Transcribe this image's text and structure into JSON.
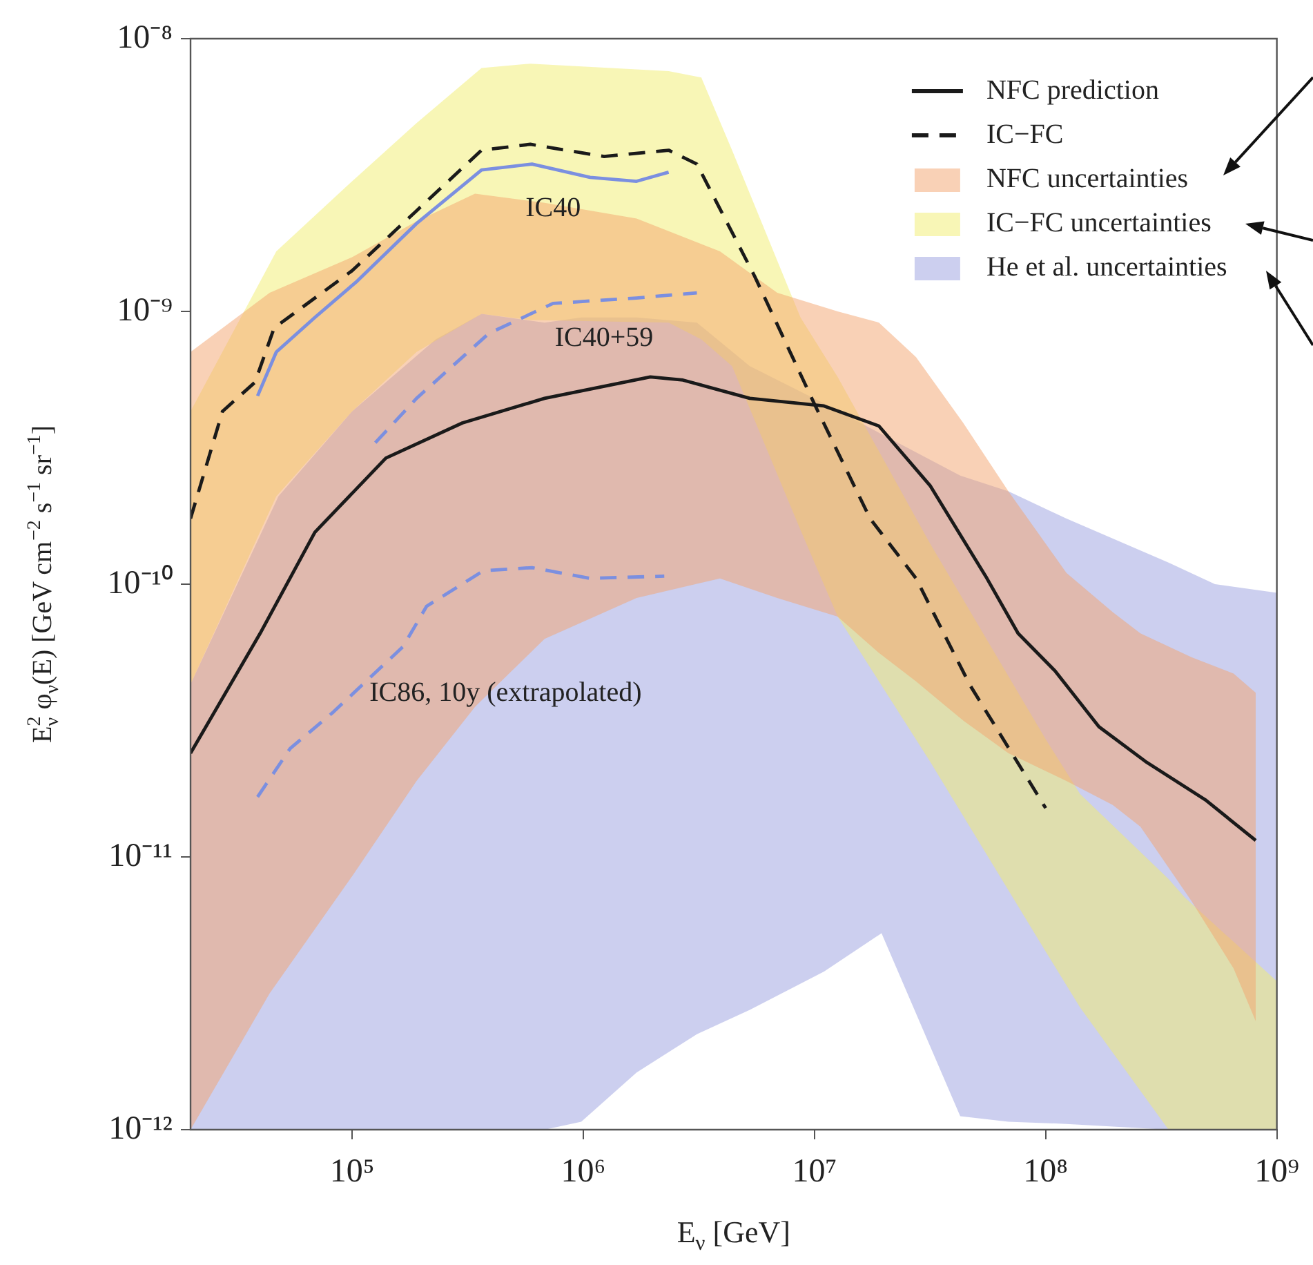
{
  "chart_data": {
    "type": "line",
    "log": "xy",
    "marker": "none",
    "legend": "top right",
    "xlabel": "E$_{ν}$ [GeV]",
    "ylabel": "E$_{ν}$$^{2}$ φ$_{ν}$(E) [GeV cm$^{−2}$ s$^{−1}$ sr$^{−1}$]",
    "xlim": [
      20000,
      1000000000
    ],
    "ylim": [
      1e-12,
      1e-08
    ],
    "xticks": [
      {
        "value": 100000,
        "label": "10⁵"
      },
      {
        "value": 1000000,
        "label": "10⁶"
      },
      {
        "value": 10000000,
        "label": "10⁷"
      },
      {
        "value": 100000000,
        "label": "10⁸"
      },
      {
        "value": 1000000000,
        "label": "10⁹"
      }
    ],
    "yticks": [
      {
        "value": 1e-12,
        "label": "10⁻¹²"
      },
      {
        "value": 1e-11,
        "label": "10⁻¹¹"
      },
      {
        "value": 1e-10,
        "label": "10⁻¹⁰"
      },
      {
        "value": 1e-09,
        "label": "10⁻⁹"
      },
      {
        "value": 1e-08,
        "label": "10⁻⁸"
      }
    ],
    "annotations": [
      {
        "text": "IC40",
        "x": 740000,
        "y": 3.3e-09
      },
      {
        "text": "IC40+59",
        "x": 1230000,
        "y": 1.1e-09
      },
      "IC86, 10y (extrapolated)"
    ],
    "series": [
      {
        "name": "NFC prediction",
        "color": "#1a1a1a",
        "line_style": "solid",
        "x": [
          20000,
          40000,
          69000,
          140000,
          300000,
          680000,
          1950000,
          2700000,
          5250000,
          11000000,
          19000000,
          31600000,
          55000000,
          76000000,
          110000000,
          170000000,
          270000000,
          490000000,
          810000000
        ],
        "values": [
          2.4e-11,
          6.6e-11,
          1.55e-10,
          2.9e-10,
          3.9e-10,
          4.8e-10,
          5.75e-10,
          5.6e-10,
          4.8e-10,
          4.5e-10,
          3.8e-10,
          2.3e-10,
          1.07e-10,
          6.6e-11,
          4.8e-11,
          3e-11,
          2.24e-11,
          1.62e-11,
          1.15e-11
        ]
      },
      {
        "name": "IC−FC",
        "color": "#1a1a1a",
        "line_style": "dashed",
        "x": [
          20000,
          27500,
          38000,
          46000,
          100000,
          190000,
          363000,
          590000,
          1230000,
          2340000,
          3100000,
          5500000,
          10000000,
          17400000,
          27500000,
          47000000,
          100000000
        ],
        "values": [
          1.74e-10,
          4.3e-10,
          5.5e-10,
          8.7e-10,
          1.41e-09,
          2.34e-09,
          3.9e-09,
          4.1e-09,
          3.7e-09,
          3.9e-09,
          3.47e-09,
          1.35e-09,
          4.57e-10,
          1.74e-10,
          1.05e-10,
          4.27e-11,
          1.51e-11
        ]
      },
      {
        "name": "NFC uncertainties",
        "type": "area",
        "color": "#f4a46e",
        "x": [
          20000,
          44000,
          100000,
          190000,
          340000,
          680000,
          1700000,
          3900000,
          6900000,
          12600000,
          19000000,
          27500000,
          44000000,
          69000000,
          123000000,
          195000000,
          257000000,
          427000000,
          650000000,
          810000000
        ],
        "values": [
          null,
          null,
          null,
          null,
          null,
          null,
          null,
          null,
          null,
          null,
          null,
          null,
          null,
          null,
          null,
          null,
          null,
          null,
          null,
          null
        ],
        "upper": [
          7.1e-10,
          1.17e-09,
          1.58e-09,
          2.14e-09,
          2.7e-09,
          2.5e-09,
          2.19e-09,
          1.66e-09,
          1.17e-09,
          1e-09,
          9.1e-10,
          6.8e-10,
          3.9e-10,
          2.19e-10,
          1.1e-10,
          7.9e-11,
          6.6e-11,
          5.4e-11,
          4.7e-11,
          4e-11
        ],
        "lower": [
          1e-12,
          3.16e-12,
          8.5e-12,
          1.9e-11,
          3.55e-11,
          6.3e-11,
          8.9e-11,
          1.05e-10,
          8.9e-11,
          7.6e-11,
          5.6e-11,
          4.4e-11,
          3.16e-11,
          2.4e-11,
          1.9e-11,
          1.55e-11,
          1.29e-11,
          6.9e-12,
          3.9e-12,
          2.5e-12
        ]
      },
      {
        "name": "IC−FC uncertainties",
        "type": "area",
        "color": "#f2ee6e",
        "x": [
          20000,
          47000,
          100000,
          190000,
          363000,
          590000,
          2340000,
          3240000,
          4400000,
          8700000,
          12600000,
          31600000,
          100000000,
          141000000,
          340000000,
          400000000,
          1000000000
        ],
        "values": [
          null,
          null,
          null,
          null,
          null,
          null,
          null,
          null,
          null,
          null,
          null,
          null,
          null,
          null,
          null,
          null,
          null
        ],
        "upper": [
          4.3e-10,
          1.66e-09,
          3e-09,
          4.9e-09,
          7.8e-09,
          8.1e-09,
          7.6e-09,
          7.2e-09,
          3.9e-09,
          9.5e-10,
          5.75e-10,
          1.41e-10,
          2.7e-11,
          1.7e-11,
          8.3e-12,
          7.1e-12,
          3.5e-12
        ],
        "lower": [
          4.3e-11,
          2.1e-10,
          4.3e-10,
          7.1e-10,
          9.8e-10,
          9.3e-10,
          9.1e-10,
          7.9e-10,
          6.3e-10,
          1.58e-10,
          7.6e-11,
          2.24e-11,
          4.5e-12,
          2.8e-12,
          1e-12,
          1e-12,
          1e-12
        ]
      },
      {
        "name": "He et al. uncertainties",
        "type": "area",
        "color": "#9a9fe0",
        "x": [
          20000,
          48000,
          100000,
          230000,
          363000,
          680000,
          980000,
          1700000,
          3100000,
          5250000,
          11000000,
          19500000,
          42700000,
          69000000,
          123000000,
          340000000,
          540000000,
          1000000000
        ],
        "values": [
          null,
          null,
          null,
          null,
          null,
          null,
          null,
          null,
          null,
          null,
          null,
          null,
          null,
          null,
          null,
          null,
          null,
          null
        ],
        "upper": [
          4.3e-11,
          2.1e-10,
          4.3e-10,
          7.9e-10,
          9.8e-10,
          9.1e-10,
          9.5e-10,
          9.5e-10,
          9.1e-10,
          6.3e-10,
          4.6e-10,
          3.55e-10,
          2.5e-10,
          2.19e-10,
          1.74e-10,
          1.2e-10,
          1e-10,
          9.3e-11
        ],
        "lower": [
          1e-12,
          1e-12,
          1e-12,
          1e-12,
          1e-12,
          1e-12,
          1.07e-12,
          1.62e-12,
          2.24e-12,
          2.75e-12,
          3.8e-12,
          5.25e-12,
          1.12e-12,
          1.07e-12,
          1.05e-12,
          1e-12,
          1e-12,
          1e-12
        ]
      },
      {
        "color": "#7b8fe0",
        "line_style": "solid",
        "x": [
          39000,
          47000,
          69000,
          105000,
          190000,
          363000,
          600000,
          1070000,
          1700000,
          2340000
        ],
        "values": [
          4.9e-10,
          7.1e-10,
          9.5e-10,
          1.29e-09,
          2.1e-09,
          3.3e-09,
          3.47e-09,
          3.1e-09,
          3e-09,
          3.24e-09
        ]
      },
      {
        "color": "#7b8fe0",
        "line_style": "dashed",
        "x": [
          126000,
          190000,
          390000,
          740000,
          1700000,
          3100000
        ],
        "values": [
          3.3e-10,
          4.8e-10,
          8.3e-10,
          1.07e-09,
          1.12e-09,
          1.17e-09
        ]
      },
      {
        "color": "#7b8fe0",
        "line_style": "dashed",
        "x": [
          39000,
          54000,
          83000,
          166000,
          210000,
          370000,
          600000,
          1070000,
          2240000
        ],
        "values": [
          1.66e-11,
          2.5e-11,
          3.4e-11,
          5.9e-11,
          8.3e-11,
          1.12e-10,
          1.15e-10,
          1.05e-10,
          1.07e-10
        ]
      }
    ]
  }
}
